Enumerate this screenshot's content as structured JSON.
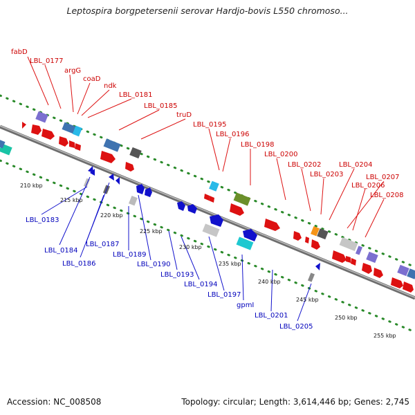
{
  "title": "Leptospira borgpetersenii serovar Hardjo-bovis L550 chromoso...",
  "footer": {
    "accession": "Accession: NC_008508",
    "topology": "Topology: circular; Length: 3,614,446 bp; Genes: 2,745"
  },
  "colors": {
    "forward": "#dd1111",
    "reverse": "#1111cc",
    "grid": "#2a8a2a",
    "backbone": "#888888"
  },
  "scale_ticks": [
    "210 kbp",
    "215 kbp",
    "220 kbp",
    "225 kbp",
    "230 kbp",
    "235 kbp",
    "240 kbp",
    "245 kbp",
    "250 kbp",
    "255 kbp"
  ],
  "forward_labels": [
    "fabD",
    "LBL_0177",
    "argG",
    "coaD",
    "ndk",
    "LBL_0181",
    "LBL_0185",
    "truD",
    "LBL_0195",
    "LBL_0196",
    "LBL_0198",
    "LBL_0200",
    "LBL_0202",
    "LBL_0203",
    "LBL_0204",
    "LBL_0206",
    "LBL_0207",
    "LBL_0208"
  ],
  "reverse_labels": [
    "LBL_0183",
    "LBL_0184",
    "LBL_0186",
    "LBL_0187",
    "LBL_0189",
    "LBL_0190",
    "LBL_0193",
    "LBL_0194",
    "LBL_0197",
    "gpmI",
    "LBL_0201",
    "LBL_0205"
  ]
}
